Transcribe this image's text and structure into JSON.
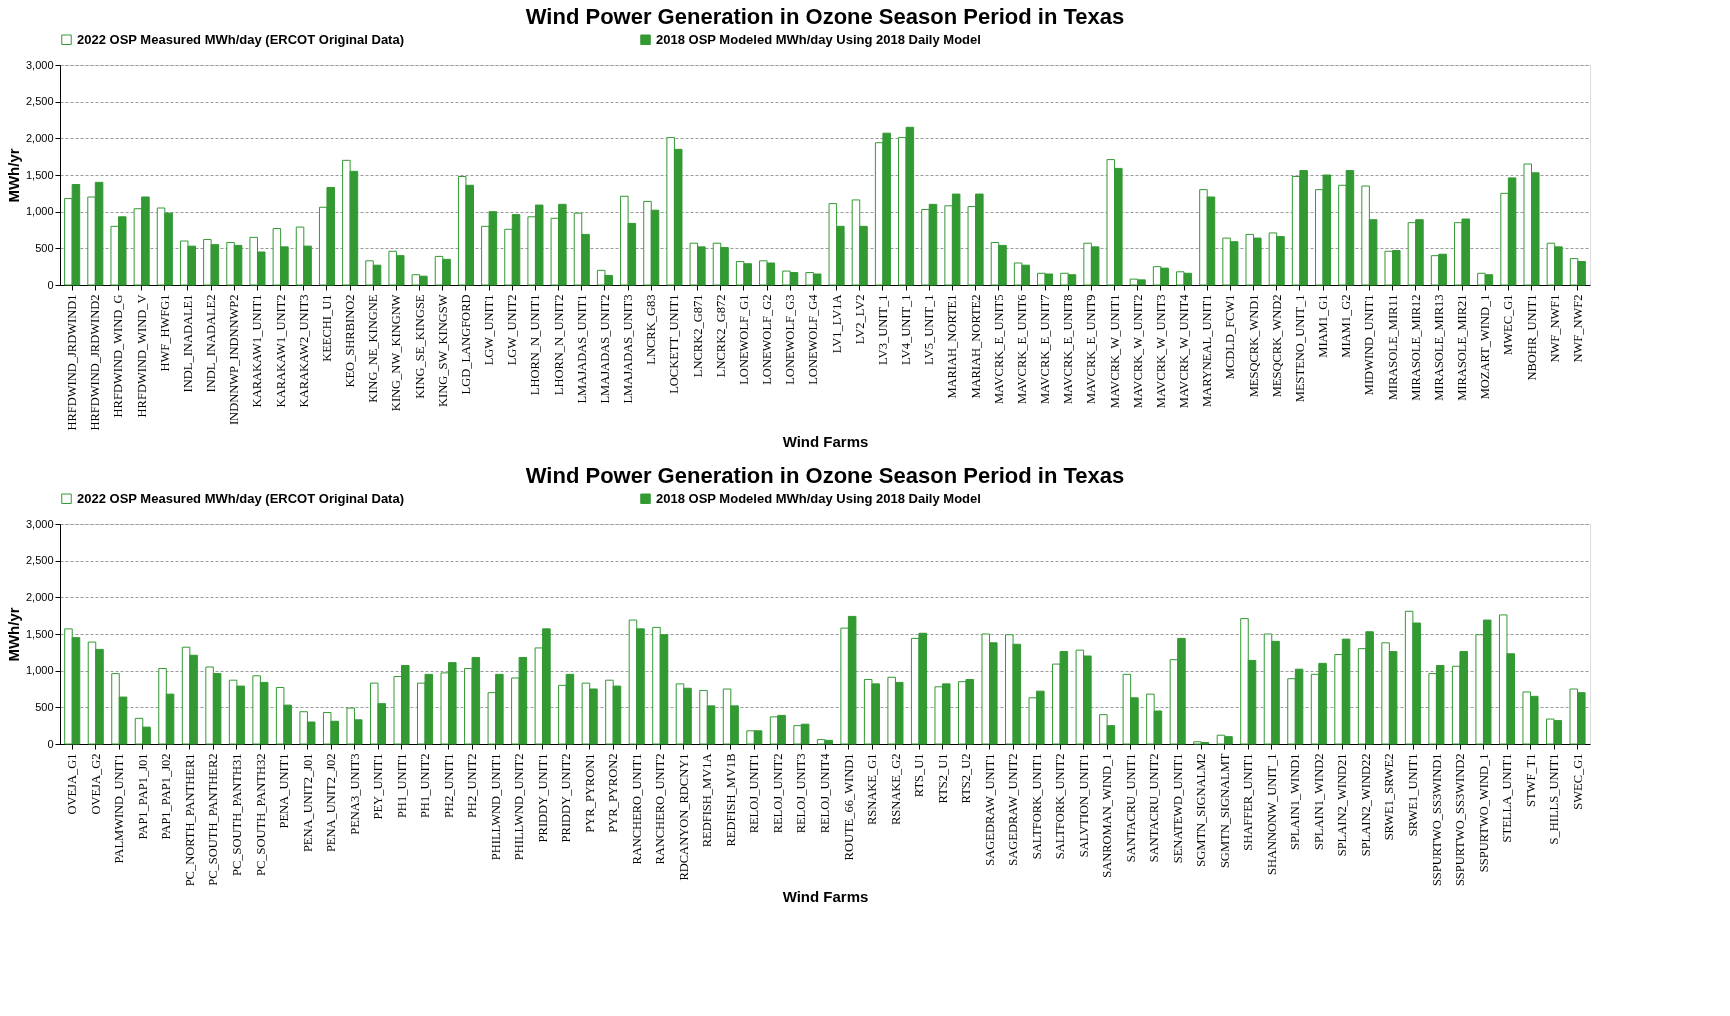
{
  "chart_data": [
    {
      "type": "bar",
      "title": "Wind Power Generation in Ozone Season Period in Texas",
      "xlabel": "Wind Farms",
      "ylabel": "MWh/yr",
      "categories": [
        "HRFDWIND_JRDWIND1",
        "HRFDWIND_JRDWIND2",
        "HRFDWIND_WIND_G",
        "HRFDWIND_WIND_V",
        "HWF_HWFG1",
        "INDL_INADALE1",
        "INDL_INADALE2",
        "INDNNWP_INDNNWP2",
        "KARAKAW1_UNIT1",
        "KARAKAW1_UNIT2",
        "KARAKAW2_UNIT3",
        "KEECHI_U1",
        "KEO_SHRBINO2",
        "KING_NE_KINGNE",
        "KING_NW_KINGNW",
        "KING_SE_KINGSE",
        "KING_SW_KINGSW",
        "LGD_LANGFORD",
        "LGW_UNIT1",
        "LGW_UNIT2",
        "LHORN_N_UNIT1",
        "LHORN_N_UNIT2",
        "LMAJADAS_UNIT1",
        "LMAJADAS_UNIT2",
        "LMAJADAS_UNIT3",
        "LNCRK_G83",
        "LOCKETT_UNIT1",
        "LNCRK2_G871",
        "LNCRK2_G872",
        "LONEWOLF_G1",
        "LONEWOLF_G2",
        "LONEWOLF_G3",
        "LONEWOLF_G4",
        "LV1_LV1A",
        "LV2_LV2",
        "LV3_UNIT_1",
        "LV4_UNIT_1",
        "LV5_UNIT_1",
        "MARIAH_NORTE1",
        "MARIAH_NORTE2",
        "MAVCRK_E_UNIT5",
        "MAVCRK_E_UNIT6",
        "MAVCRK_E_UNIT7",
        "MAVCRK_E_UNIT8",
        "MAVCRK_E_UNIT9",
        "MAVCRK_W_UNIT1",
        "MAVCRK_W_UNIT2",
        "MAVCRK_W_UNIT3",
        "MAVCRK_W_UNIT4",
        "MARYNEAL_UNIT1",
        "MCDLD_FCW1",
        "MESQCRK_WND1",
        "MESQCRK_WND2",
        "MESTENO_UNIT_1",
        "MIAM1_G1",
        "MIAM1_G2",
        "MIDWIND_UNIT1",
        "MIRASOLE_MIR11",
        "MIRASOLE_MIR12",
        "MIRASOLE_MIR13",
        "MIRASOLE_MIR21",
        "MOZART_WIND_1",
        "MWEC_G1",
        "NBOHR_UNIT1",
        "NWF_NWF1",
        "NWF_NWF2"
      ],
      "series": [
        {
          "name": "2022 OSP Measured MWh/day  (ERCOT Original Data)",
          "color": "#ffffff",
          "values": [
            1180,
            1200,
            800,
            1040,
            1050,
            600,
            620,
            580,
            650,
            770,
            790,
            1060,
            1700,
            330,
            460,
            140,
            390,
            1480,
            800,
            760,
            930,
            910,
            980,
            200,
            1210,
            1140,
            2010,
            570,
            570,
            320,
            330,
            190,
            170,
            1110,
            1160,
            1940,
            2010,
            1030,
            1080,
            1070,
            580,
            300,
            160,
            160,
            570,
            1710,
            80,
            250,
            180,
            1300,
            640,
            690,
            710,
            1480,
            1300,
            1360,
            1350,
            460,
            850,
            400,
            850,
            160,
            1250,
            1650,
            570,
            360
          ]
        },
        {
          "name": "2018 OSP Modeled MWh/day Using 2018 Daily Model",
          "color": "#339933",
          "values": [
            1370,
            1400,
            930,
            1200,
            980,
            530,
            550,
            540,
            450,
            520,
            530,
            1330,
            1550,
            270,
            400,
            120,
            350,
            1360,
            1000,
            960,
            1090,
            1100,
            690,
            130,
            840,
            1020,
            1850,
            520,
            510,
            290,
            300,
            170,
            150,
            800,
            800,
            2070,
            2150,
            1100,
            1240,
            1240,
            540,
            270,
            150,
            140,
            520,
            1590,
            70,
            230,
            160,
            1200,
            590,
            640,
            660,
            1560,
            1500,
            1560,
            890,
            470,
            890,
            420,
            900,
            140,
            1460,
            1530,
            520,
            320
          ]
        }
      ],
      "ylim": [
        0,
        3000
      ],
      "yticks": [
        0,
        {
          "value": 500,
          "label": "500"
        },
        {
          "value": 1000,
          "label": "1,000"
        },
        {
          "value": 1500,
          "label": "1,500"
        },
        {
          "value": 2000,
          "label": "2,000"
        },
        {
          "value": 2500,
          "label": "2,500"
        },
        {
          "value": 3000,
          "label": "3,000"
        }
      ],
      "grid": "y",
      "legend": "top"
    },
    {
      "type": "bar",
      "title": "Wind Power Generation in Ozone Season Period in Texas",
      "xlabel": "Wind Farms",
      "ylabel": "MWh/yr",
      "categories": [
        "OVEJA_G1",
        "OVEJA_G2",
        "PALMWIND_UNIT1",
        "PAP1_PAP1_J01",
        "PAP1_PAP1_J02",
        "PC_NORTH_PANTHER1",
        "PC_SOUTH_PANTHER2",
        "PC_SOUTH_PANTH31",
        "PC_SOUTH_PANTH32",
        "PENA_UNIT1",
        "PENA_UNIT2_J01",
        "PENA_UNIT2_J02",
        "PENA3_UNIT3",
        "PEY_UNIT1",
        "PH1_UNIT1",
        "PH1_UNIT2",
        "PH2_UNIT1",
        "PH2_UNIT2",
        "PHILLWND_UNIT1",
        "PHILLWND_UNIT2",
        "PRIDDY_UNIT1",
        "PRIDDY_UNIT2",
        "PYR_PYRON1",
        "PYR_PYRON2",
        "RANCHERO_UNIT1",
        "RANCHERO_UNIT2",
        "RDCANYON_RDCNY1",
        "REDFISH_MV1A",
        "REDFISH_MV1B",
        "RELOJ_UNIT1",
        "RELOJ_UNIT2",
        "RELOJ_UNIT3",
        "RELOJ_UNIT4",
        "ROUTE_66_WIND1",
        "RSNAKE_G1",
        "RSNAKE_G2",
        "RTS_U1",
        "RTS2_U1",
        "RTS2_U2",
        "SAGEDRAW_UNIT1",
        "SAGEDRAW_UNIT2",
        "SALTFORK_UNIT1",
        "SALTFORK_UNIT2",
        "SALVTION_UNIT1",
        "SANROMAN_WIND_1",
        "SANTACRU_UNIT1",
        "SANTACRU_UNIT2",
        "SENATEWD_UNIT1",
        "SGMTN_SIGNALM2",
        "SGMTN_SIGNALMT",
        "SHAFFER_UNIT1",
        "SHANNONW_UNIT_1",
        "SPLAIN1_WIND1",
        "SPLAIN1_WIND2",
        "SPLAIN2_WIND21",
        "SPLAIN2_WIND22",
        "SRWE1_SRWE2",
        "SRWE1_UNIT1",
        "SSPURTWO_SS3WIND1",
        "SSPURTWO_SS3WIND2",
        "SSPURTWO_WIND_1",
        "STELLA_UNIT1",
        "STWF_T1",
        "S_HILLS_UNIT1",
        "SWEC_G1"
      ],
      "series": [
        {
          "name": "2022 OSP Measured MWh/day  (ERCOT Original Data)",
          "color": "#ffffff",
          "values": [
            1570,
            1390,
            960,
            350,
            1030,
            1320,
            1050,
            870,
            930,
            770,
            440,
            430,
            490,
            830,
            920,
            830,
            970,
            1030,
            700,
            900,
            1310,
            800,
            830,
            870,
            1690,
            1590,
            820,
            730,
            750,
            180,
            370,
            250,
            60,
            1580,
            880,
            910,
            1440,
            780,
            850,
            1500,
            1490,
            630,
            1090,
            1280,
            400,
            950,
            680,
            1150,
            30,
            120,
            1710,
            1500,
            890,
            950,
            1220,
            1300,
            1380,
            1810,
            960,
            1060,
            1490,
            1760,
            710,
            340,
            750
          ]
        },
        {
          "name": "2018 OSP Modeled MWh/day Using 2018 Daily Model",
          "color": "#339933",
          "values": [
            1450,
            1290,
            640,
            230,
            680,
            1210,
            960,
            790,
            840,
            530,
            300,
            310,
            330,
            550,
            1070,
            950,
            1110,
            1180,
            950,
            1180,
            1570,
            950,
            750,
            790,
            1570,
            1490,
            760,
            520,
            520,
            180,
            390,
            270,
            50,
            1740,
            820,
            840,
            1510,
            820,
            880,
            1380,
            1360,
            720,
            1260,
            1200,
            250,
            630,
            450,
            1440,
            20,
            100,
            1140,
            1400,
            1020,
            1100,
            1430,
            1530,
            1260,
            1650,
            1070,
            1260,
            1690,
            1230,
            650,
            320,
            700
          ]
        }
      ],
      "ylim": [
        0,
        3000
      ],
      "yticks": [
        0,
        {
          "value": 500,
          "label": "500"
        },
        {
          "value": 1000,
          "label": "1,000"
        },
        {
          "value": 1500,
          "label": "1,500"
        },
        {
          "value": 2000,
          "label": "2,000"
        },
        {
          "value": 2500,
          "label": "2,500"
        },
        {
          "value": 3000,
          "label": "3,000"
        }
      ],
      "grid": "y",
      "legend": "top"
    }
  ]
}
